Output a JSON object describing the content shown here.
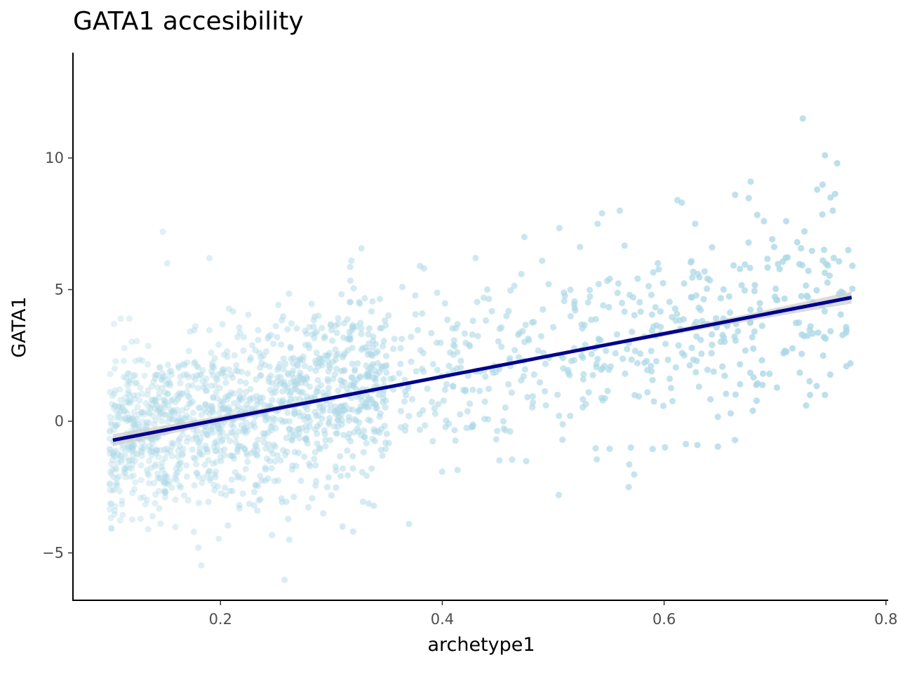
{
  "chart_data": {
    "type": "scatter",
    "title": "GATA1 accesibility",
    "xlabel": "archetype1",
    "ylabel": "GATA1",
    "xlim": [
      0.067,
      0.802
    ],
    "ylim": [
      -6.8,
      14.0
    ],
    "x_ticks": [
      0.2,
      0.4,
      0.6,
      0.8
    ],
    "x_tick_labels": [
      "0.2",
      "0.4",
      "0.6",
      "0.8"
    ],
    "y_ticks": [
      -5,
      0,
      5,
      10
    ],
    "y_tick_labels": [
      "−5",
      "0",
      "5",
      "10"
    ],
    "grid": false,
    "legend": "none",
    "point_color": "#add8e6",
    "line_color": "#00008b",
    "ribbon_color": "#cccccc",
    "n_points": 1800,
    "x_range": [
      0.1,
      0.77
    ],
    "points_sample": [
      [
        0.104,
        3.7
      ],
      [
        0.11,
        3.9
      ],
      [
        0.118,
        3.9
      ],
      [
        0.128,
        -3.7
      ],
      [
        0.148,
        7.2
      ],
      [
        0.152,
        6.0
      ],
      [
        0.176,
        -4.2
      ],
      [
        0.18,
        -4.8
      ],
      [
        0.19,
        6.2
      ],
      [
        0.262,
        -4.5
      ],
      [
        0.318,
        6.1
      ],
      [
        0.31,
        -4.0
      ],
      [
        0.37,
        -3.9
      ],
      [
        0.38,
        5.9
      ],
      [
        0.43,
        6.2
      ],
      [
        0.474,
        7.0
      ],
      [
        0.49,
        6.1
      ],
      [
        0.505,
        -2.8
      ],
      [
        0.544,
        7.9
      ],
      [
        0.54,
        7.5
      ],
      [
        0.56,
        8.0
      ],
      [
        0.568,
        -2.5
      ],
      [
        0.612,
        8.4
      ],
      [
        0.616,
        8.3
      ],
      [
        0.628,
        7.5
      ],
      [
        0.664,
        8.6
      ],
      [
        0.678,
        9.1
      ],
      [
        0.725,
        11.5
      ],
      [
        0.745,
        10.1
      ],
      [
        0.756,
        9.8
      ],
      [
        0.738,
        8.8
      ],
      [
        0.75,
        8.5
      ],
      [
        0.752,
        8.0
      ],
      [
        0.768,
        2.2
      ],
      [
        0.745,
        1.0
      ],
      [
        0.728,
        0.6
      ],
      [
        0.68,
        0.4
      ],
      [
        0.66,
        0.3
      ],
      [
        0.63,
        -0.9
      ],
      [
        0.69,
        7.6
      ],
      [
        0.71,
        7.6
      ],
      [
        0.72,
        6.8
      ],
      [
        0.766,
        6.5
      ],
      [
        0.695,
        1.8
      ],
      [
        0.57,
        -1.0
      ]
    ],
    "regression": {
      "x0": 0.103,
      "y0": -0.72,
      "x1": 0.769,
      "y1": 4.7,
      "se_band_halfwidth_end": 0.18
    }
  }
}
